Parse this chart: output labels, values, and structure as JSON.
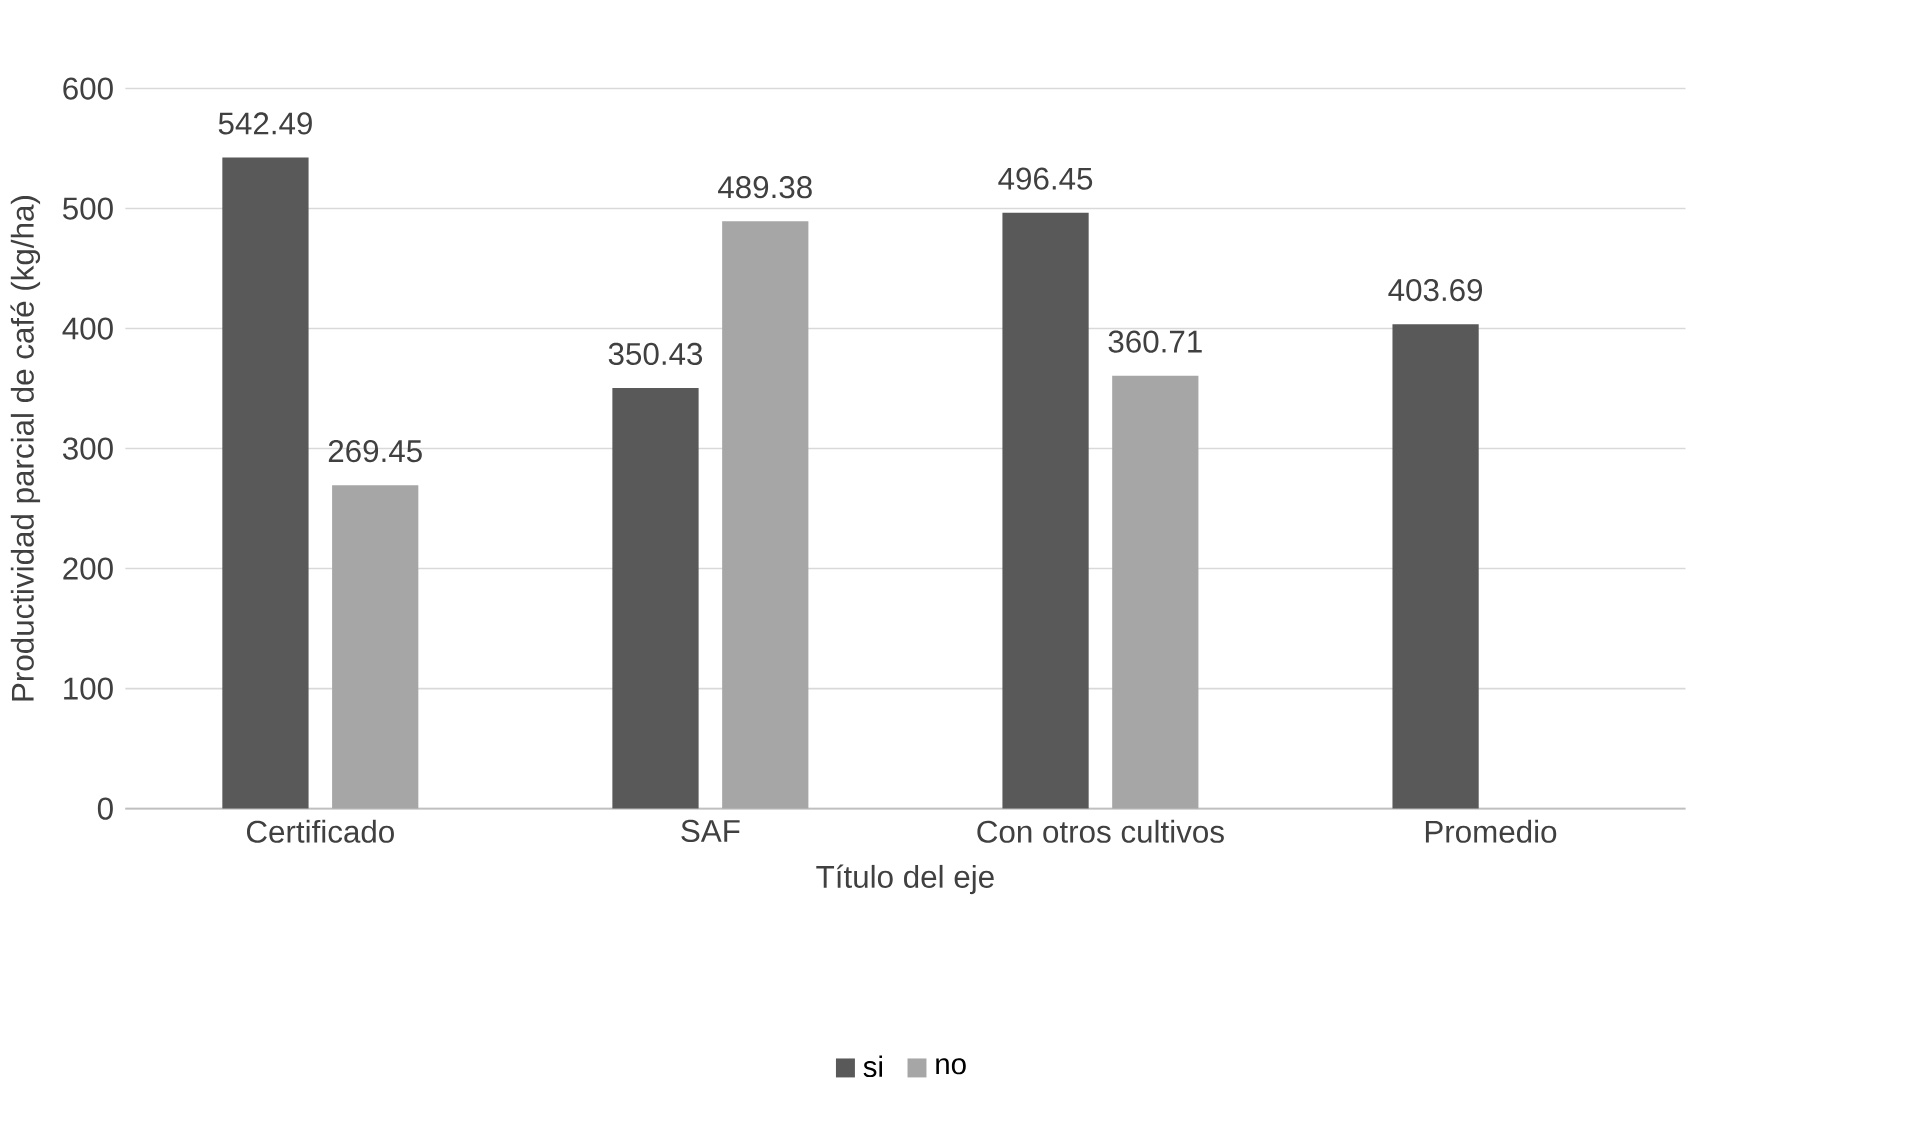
{
  "chart_data": {
    "type": "bar",
    "xlabel": "Título del eje",
    "ylabel": "Productividad parcial de café (kg/ha)",
    "categories": [
      "Certificado",
      "SAF",
      "Con otros cultivos",
      "Promedio"
    ],
    "series": [
      {
        "name": "si",
        "color": "#595959",
        "values": [
          542.49,
          350.43,
          496.45,
          403.69
        ]
      },
      {
        "name": "no",
        "color": "#a6a6a6",
        "values": [
          269.45,
          489.38,
          360.71,
          null
        ]
      }
    ],
    "ylim": [
      0,
      600
    ],
    "yticks": [
      0,
      100,
      200,
      300,
      400,
      500,
      600
    ],
    "grid": "y",
    "legend": "bottom",
    "data_labels": true
  }
}
